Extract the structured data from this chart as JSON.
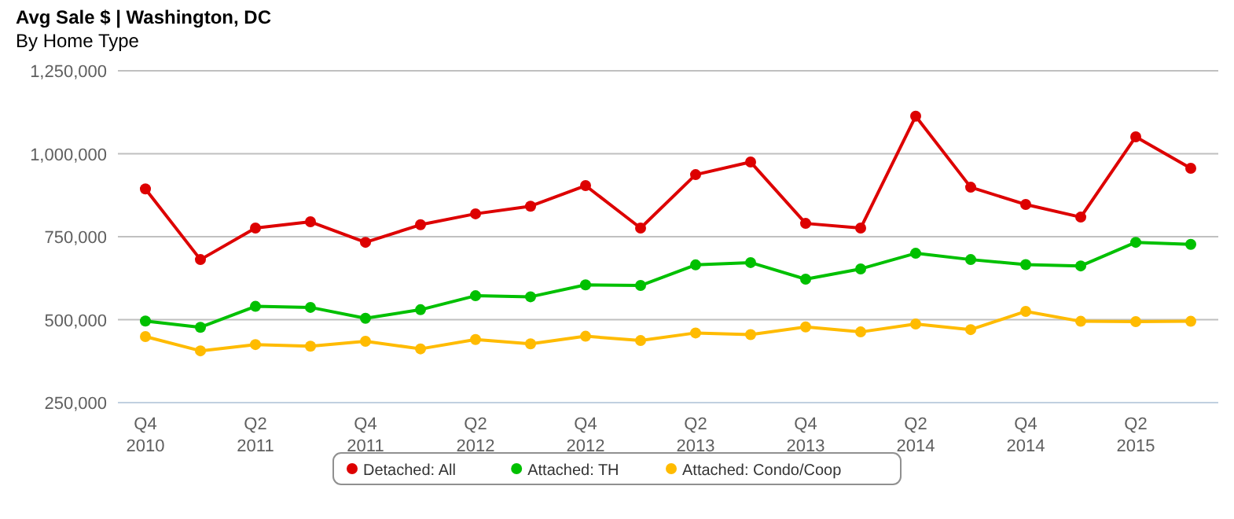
{
  "chart_data": {
    "type": "line",
    "title": "Avg Sale $ | Washington, DC",
    "subtitle": "By Home Type",
    "categories": [
      "Q4 2010",
      null,
      "Q2 2011",
      null,
      "Q4 2011",
      null,
      "Q2 2012",
      null,
      "Q4 2012",
      null,
      "Q2 2013",
      null,
      "Q4 2013",
      null,
      "Q2 2014",
      null,
      "Q4 2014",
      null,
      "Q2 2015",
      null
    ],
    "series": [
      {
        "name": "Detached: All",
        "color": "#dd0000",
        "values": [
          894000,
          681000,
          776000,
          795000,
          733000,
          786000,
          819000,
          842000,
          904000,
          776000,
          937000,
          975000,
          790000,
          776000,
          1113000,
          899000,
          847000,
          809000,
          1051000,
          956000
        ]
      },
      {
        "name": "Attached: TH",
        "color": "#00c000",
        "values": [
          496000,
          477000,
          540000,
          537000,
          504000,
          530000,
          572000,
          569000,
          605000,
          603000,
          665000,
          672000,
          622000,
          653000,
          700000,
          681000,
          666000,
          662000,
          733000,
          727000
        ]
      },
      {
        "name": "Attached: Condo/Coop",
        "color": "#ffbb00",
        "values": [
          449000,
          406000,
          425000,
          420000,
          435000,
          412000,
          440000,
          427000,
          450000,
          437000,
          460000,
          455000,
          478000,
          463000,
          487000,
          470000,
          525000,
          495000,
          494000,
          495000
        ]
      }
    ],
    "ylim": [
      250000,
      1250000
    ],
    "yticks": [
      {
        "value": 250000,
        "label": "250,000"
      },
      {
        "value": 500000,
        "label": "500,000"
      },
      {
        "value": 750000,
        "label": "750,000"
      },
      {
        "value": 1000000,
        "label": "1,000,000"
      },
      {
        "value": 1250000,
        "label": "1,250,000"
      }
    ],
    "grid": "y",
    "legend": "bottom",
    "marker": "circle",
    "line_style": "solid"
  }
}
